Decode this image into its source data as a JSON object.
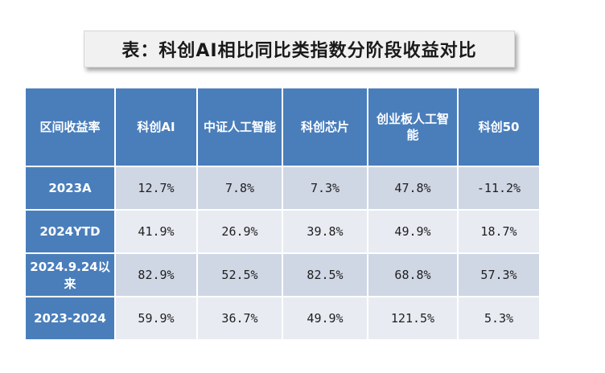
{
  "title": "表：科创AI相比同比类指数分阶段收益对比",
  "table": {
    "headers": [
      "区间收益率",
      "科创AI",
      "中证人工智能",
      "科创芯片",
      "创业板人工智能",
      "科创50"
    ],
    "rows": [
      {
        "label": "2023A",
        "values": [
          "12.7%",
          "7.8%",
          "7.3%",
          "47.8%",
          "-11.2%"
        ]
      },
      {
        "label": "2024YTD",
        "values": [
          "41.9%",
          "26.9%",
          "39.8%",
          "49.9%",
          "18.7%"
        ]
      },
      {
        "label": "2024.9.24以来",
        "values": [
          "82.9%",
          "52.5%",
          "82.5%",
          "68.8%",
          "57.3%"
        ]
      },
      {
        "label": "2023-2024",
        "values": [
          "59.9%",
          "36.7%",
          "49.9%",
          "121.5%",
          "5.3%"
        ]
      }
    ]
  }
}
